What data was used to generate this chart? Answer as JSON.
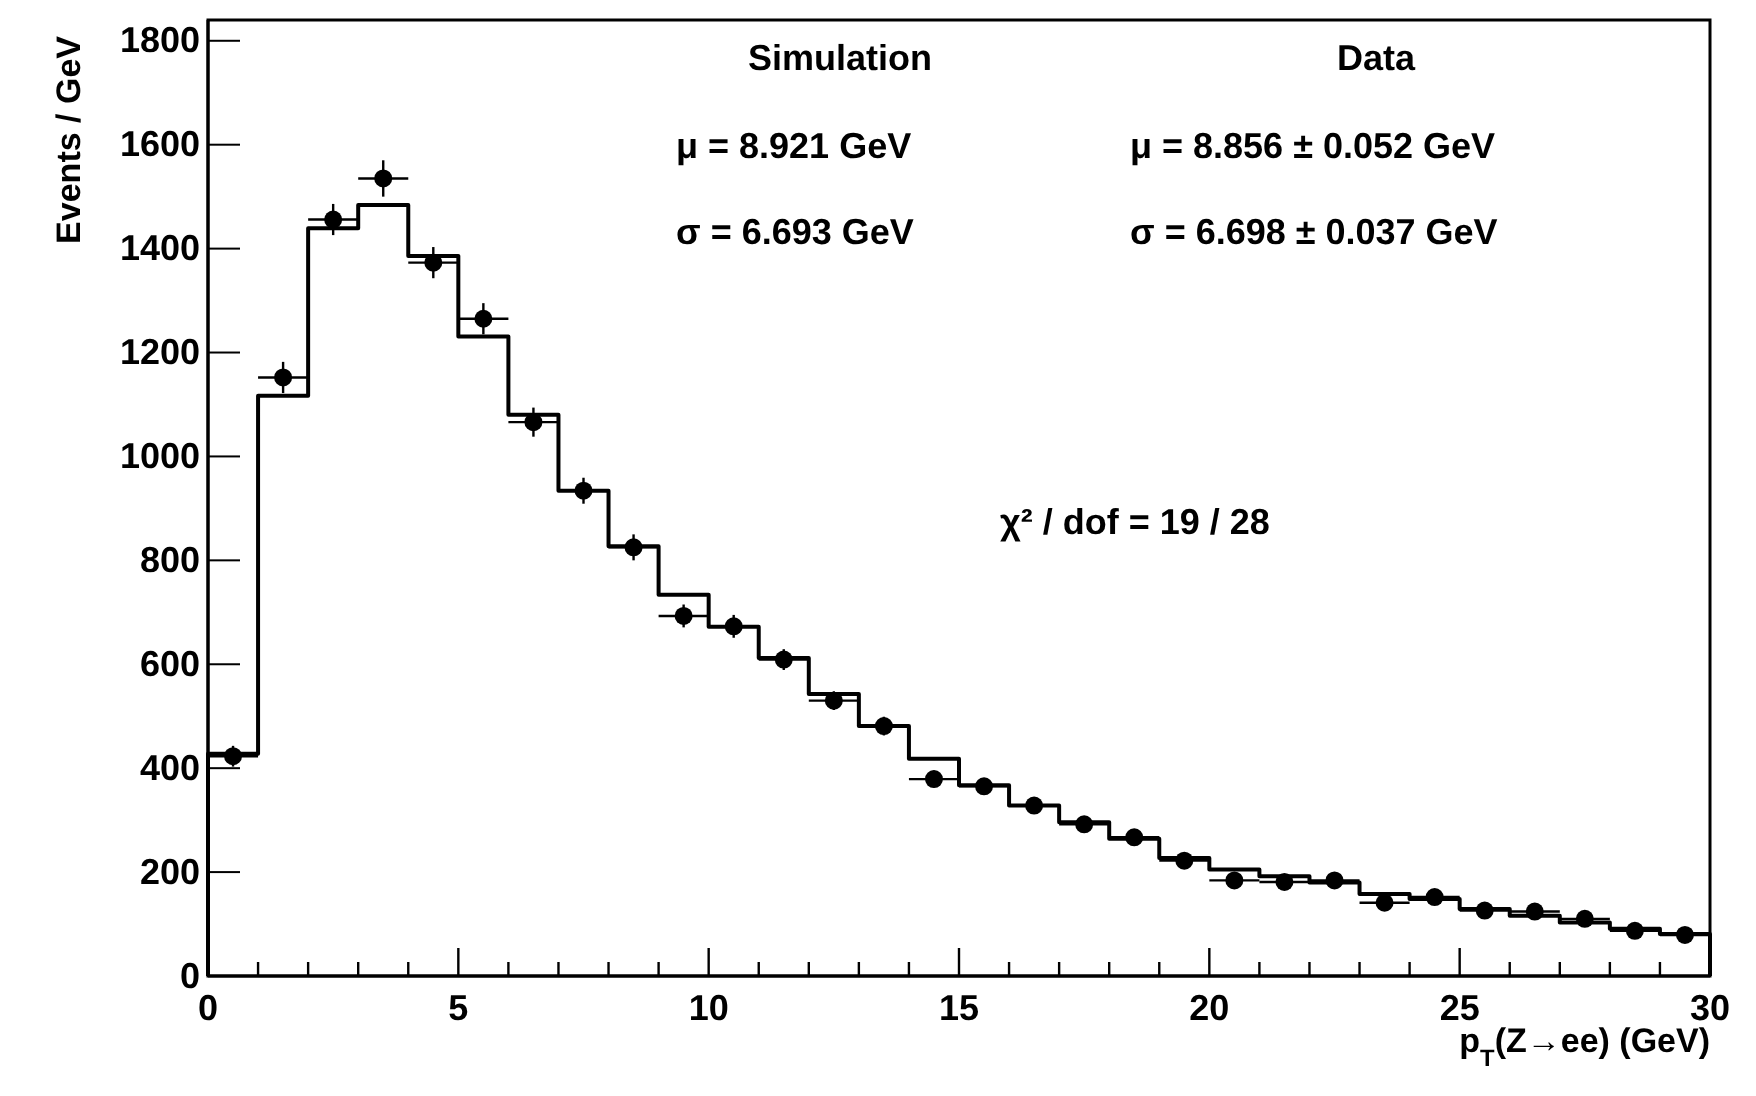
{
  "chart_data": {
    "type": "histogram",
    "xlabel": "p$_{T}$(Z→ee) (GeV)",
    "ylabel": "Events / GeV",
    "bins": [
      0,
      1,
      2,
      3,
      4,
      5,
      6,
      7,
      8,
      9,
      10,
      11,
      12,
      13,
      14,
      15,
      16,
      17,
      18,
      19,
      20,
      21,
      22,
      23,
      24,
      25,
      26,
      27,
      28,
      29,
      30
    ],
    "series": [
      {
        "color": "#000000",
        "values": [
          428,
          1117,
          1439,
          1484,
          1386,
          1231,
          1080,
          934,
          827,
          734,
          672,
          612,
          543,
          481,
          418,
          367,
          328,
          296,
          264,
          227,
          205,
          192,
          180,
          158,
          148,
          129,
          116,
          103,
          91,
          81
        ]
      },
      {
        "type": "scatter",
        "color": "#000000",
        "x": [
          0.5,
          1.5,
          2.5,
          3.5,
          4.5,
          5.5,
          6.5,
          7.5,
          8.5,
          9.5,
          10.5,
          11.5,
          12.5,
          13.5,
          14.5,
          15.5,
          16.5,
          17.5,
          18.5,
          19.5,
          20.5,
          21.5,
          22.5,
          23.5,
          24.5,
          25.5,
          26.5,
          27.5,
          28.5,
          29.5
        ],
        "values": [
          423,
          1152,
          1456,
          1535,
          1373,
          1265,
          1066,
          934,
          825,
          693,
          673,
          609,
          530,
          481,
          379,
          365,
          328,
          292,
          267,
          222,
          184,
          181,
          184,
          141,
          152,
          126,
          124,
          110,
          87,
          79
        ],
        "errors": [
          20,
          30,
          30,
          35,
          30,
          30,
          28,
          25,
          25,
          22,
          22,
          20,
          18,
          18,
          16,
          15,
          14,
          14,
          13,
          12,
          12,
          11,
          11,
          10,
          10,
          9,
          9,
          9,
          8,
          8
        ],
        "xerrors": [
          0.5,
          0.5,
          0.5,
          0.5,
          0.5,
          0.5,
          0.5,
          0.5,
          0.5,
          0.5,
          0.5,
          0.5,
          0.5,
          0.5,
          0.5,
          0.5,
          0.5,
          0.5,
          0.5,
          0.5,
          0.5,
          0.5,
          0.5,
          0.5,
          0.5,
          0.5,
          0.5,
          0.5,
          0.5,
          0.5
        ]
      }
    ],
    "marker": "circle",
    "legend": false,
    "grid": false,
    "xlim": [
      0,
      30
    ],
    "ylim": [
      0,
      1840
    ],
    "xticks": [
      0,
      {
        "value": 1,
        "label": null
      },
      {
        "value": 2,
        "label": null
      },
      {
        "value": 3,
        "label": null
      },
      {
        "value": 4,
        "label": null
      },
      5,
      {
        "value": 6,
        "label": null
      },
      {
        "value": 7,
        "label": null
      },
      {
        "value": 8,
        "label": null
      },
      {
        "value": 9,
        "label": null
      },
      10,
      {
        "value": 11,
        "label": null
      },
      {
        "value": 12,
        "label": null
      },
      {
        "value": 13,
        "label": null
      },
      {
        "value": 14,
        "label": null
      },
      15,
      {
        "value": 16,
        "label": null
      },
      {
        "value": 17,
        "label": null
      },
      {
        "value": 18,
        "label": null
      },
      {
        "value": 19,
        "label": null
      },
      20,
      {
        "value": 21,
        "label": null
      },
      {
        "value": 22,
        "label": null
      },
      {
        "value": 23,
        "label": null
      },
      {
        "value": 24,
        "label": null
      },
      25,
      {
        "value": 26,
        "label": null
      },
      {
        "value": 27,
        "label": null
      },
      {
        "value": 28,
        "label": null
      },
      {
        "value": 29,
        "label": null
      },
      30
    ],
    "yticks": [
      0,
      200,
      400,
      600,
      800,
      1000,
      1200,
      1400,
      1600,
      1800
    ],
    "annotations": [
      "Simulation",
      "Data",
      "μ = 8.921 GeV",
      "σ = 6.693 GeV",
      "μ = 8.856 ± 0.052 GeV",
      "σ = 6.698 ± 0.037 GeV",
      "χ² / dof = 19 / 28"
    ]
  }
}
